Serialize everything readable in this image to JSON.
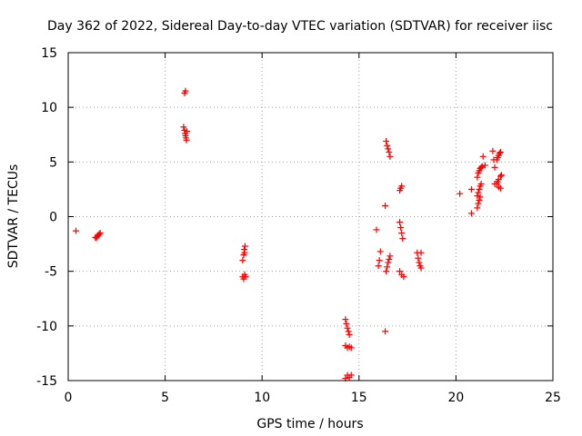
{
  "chart_data": {
    "type": "scatter",
    "title": "Day 362 of 2022, Sidereal Day-to-day VTEC variation (SDTVAR) for receiver iisc",
    "xlabel": "GPS time / hours",
    "ylabel": "SDTVAR / TECUs",
    "xlim": [
      0,
      25
    ],
    "ylim": [
      -15,
      15
    ],
    "xticks": [
      0,
      5,
      10,
      15,
      20,
      25
    ],
    "yticks": [
      -15,
      -10,
      -5,
      0,
      5,
      10,
      15
    ],
    "grid": true,
    "marker": "+",
    "color": "#ff0000",
    "series": [
      {
        "name": "SDTVAR",
        "points": [
          [
            0.4,
            -1.3
          ],
          [
            1.4,
            -1.9
          ],
          [
            1.45,
            -1.95
          ],
          [
            1.5,
            -1.8
          ],
          [
            1.55,
            -1.7
          ],
          [
            1.6,
            -1.6
          ],
          [
            1.65,
            -1.5
          ],
          [
            5.95,
            8.2
          ],
          [
            6.0,
            7.9
          ],
          [
            6.03,
            7.6
          ],
          [
            6.05,
            7.4
          ],
          [
            6.08,
            7.2
          ],
          [
            6.1,
            7.0
          ],
          [
            6.12,
            7.8
          ],
          [
            6.0,
            11.3
          ],
          [
            6.05,
            11.5
          ],
          [
            9.0,
            -4.0
          ],
          [
            9.05,
            -3.5
          ],
          [
            9.08,
            -3.0
          ],
          [
            9.1,
            -3.3
          ],
          [
            9.12,
            -2.7
          ],
          [
            9.0,
            -5.5
          ],
          [
            9.05,
            -5.7
          ],
          [
            9.1,
            -5.3
          ],
          [
            9.15,
            -5.5
          ],
          [
            14.3,
            -9.4
          ],
          [
            14.35,
            -9.8
          ],
          [
            14.4,
            -10.2
          ],
          [
            14.45,
            -10.5
          ],
          [
            14.5,
            -10.8
          ],
          [
            14.3,
            -11.8
          ],
          [
            14.4,
            -12.0
          ],
          [
            14.5,
            -11.9
          ],
          [
            14.6,
            -12.0
          ],
          [
            14.3,
            -14.8
          ],
          [
            14.4,
            -14.5
          ],
          [
            14.5,
            -14.7
          ],
          [
            14.6,
            -14.5
          ],
          [
            15.9,
            -1.2
          ],
          [
            16.0,
            -4.5
          ],
          [
            16.05,
            -4.0
          ],
          [
            16.1,
            -3.2
          ],
          [
            16.35,
            1.0
          ],
          [
            16.35,
            -10.5
          ],
          [
            16.4,
            6.9
          ],
          [
            16.45,
            6.5
          ],
          [
            16.5,
            6.2
          ],
          [
            16.55,
            5.9
          ],
          [
            16.6,
            5.5
          ],
          [
            16.4,
            -5.0
          ],
          [
            16.45,
            -4.6
          ],
          [
            16.5,
            -4.2
          ],
          [
            16.55,
            -3.9
          ],
          [
            16.6,
            -3.6
          ],
          [
            17.1,
            2.4
          ],
          [
            17.15,
            2.6
          ],
          [
            17.2,
            2.8
          ],
          [
            17.1,
            -0.5
          ],
          [
            17.15,
            -1.0
          ],
          [
            17.2,
            -1.5
          ],
          [
            17.25,
            -2.0
          ],
          [
            17.1,
            -5.0
          ],
          [
            17.2,
            -5.3
          ],
          [
            17.3,
            -5.5
          ],
          [
            18.0,
            -3.3
          ],
          [
            18.05,
            -3.8
          ],
          [
            18.1,
            -4.2
          ],
          [
            18.15,
            -4.5
          ],
          [
            18.2,
            -3.3
          ],
          [
            18.2,
            -4.7
          ],
          [
            20.2,
            2.1
          ],
          [
            20.8,
            0.3
          ],
          [
            20.8,
            2.5
          ],
          [
            21.1,
            3.6
          ],
          [
            21.15,
            4.0
          ],
          [
            21.2,
            4.2
          ],
          [
            21.25,
            4.4
          ],
          [
            21.3,
            4.5
          ],
          [
            21.35,
            4.6
          ],
          [
            21.1,
            1.9
          ],
          [
            21.15,
            2.2
          ],
          [
            21.2,
            2.5
          ],
          [
            21.25,
            2.8
          ],
          [
            21.3,
            3.0
          ],
          [
            21.1,
            0.8
          ],
          [
            21.15,
            1.2
          ],
          [
            21.2,
            1.5
          ],
          [
            21.25,
            1.8
          ],
          [
            21.4,
            5.5
          ],
          [
            21.5,
            4.7
          ],
          [
            21.9,
            6.0
          ],
          [
            21.95,
            5.2
          ],
          [
            22.0,
            4.5
          ],
          [
            22.0,
            3.0
          ],
          [
            22.1,
            5.2
          ],
          [
            22.15,
            5.4
          ],
          [
            22.2,
            5.6
          ],
          [
            22.25,
            5.8
          ],
          [
            22.3,
            5.9
          ],
          [
            22.1,
            3.0
          ],
          [
            22.15,
            3.2
          ],
          [
            22.2,
            3.4
          ],
          [
            22.3,
            3.7
          ],
          [
            22.35,
            3.8
          ],
          [
            22.2,
            2.7
          ],
          [
            22.3,
            2.6
          ]
        ]
      }
    ]
  }
}
